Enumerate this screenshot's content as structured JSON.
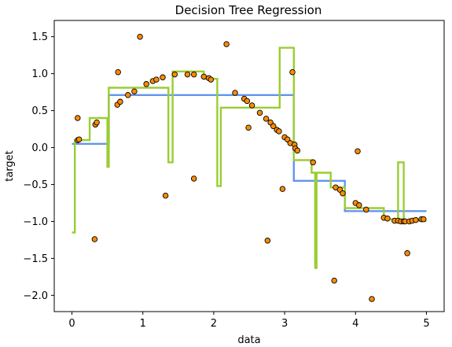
{
  "chart_data": {
    "type": "scatter",
    "title": "Decision Tree Regression",
    "xlabel": "data",
    "ylabel": "target",
    "xlim": [
      -0.25,
      5.25
    ],
    "ylim": [
      -2.22,
      1.72
    ],
    "x_ticks": [
      0,
      1,
      2,
      3,
      4,
      5
    ],
    "y_ticks": [
      -2.0,
      -1.5,
      -1.0,
      -0.5,
      0.0,
      0.5,
      1.0,
      1.5
    ],
    "x_tick_labels": [
      "0",
      "1",
      "2",
      "3",
      "4",
      "5"
    ],
    "y_tick_labels": [
      "−2.0",
      "−1.5",
      "−1.0",
      "−0.5",
      "0.0",
      "0.5",
      "1.0",
      "1.5"
    ],
    "grid": false,
    "legend": "none",
    "colors": {
      "points_fill": "#ff8c00",
      "points_edge": "#000000",
      "series_1": "#6495ed",
      "series_2": "#9acd32"
    },
    "series": [
      {
        "type": "scatter",
        "points": [
          [
            0.08,
            0.4
          ],
          [
            0.08,
            0.1
          ],
          [
            0.1,
            0.11
          ],
          [
            0.32,
            -1.24
          ],
          [
            0.33,
            0.31
          ],
          [
            0.35,
            0.34
          ],
          [
            0.64,
            0.58
          ],
          [
            0.65,
            1.02
          ],
          [
            0.68,
            0.62
          ],
          [
            0.79,
            0.71
          ],
          [
            0.88,
            0.76
          ],
          [
            0.96,
            1.5
          ],
          [
            1.05,
            0.86
          ],
          [
            1.14,
            0.9
          ],
          [
            1.19,
            0.92
          ],
          [
            1.28,
            0.95
          ],
          [
            1.32,
            -0.65
          ],
          [
            1.45,
            0.99
          ],
          [
            1.63,
            0.99
          ],
          [
            1.72,
            0.99
          ],
          [
            1.72,
            -0.42
          ],
          [
            1.86,
            0.96
          ],
          [
            1.93,
            0.94
          ],
          [
            1.96,
            0.92
          ],
          [
            2.18,
            1.4
          ],
          [
            2.3,
            0.74
          ],
          [
            2.43,
            0.66
          ],
          [
            2.47,
            0.63
          ],
          [
            2.49,
            0.27
          ],
          [
            2.54,
            0.57
          ],
          [
            2.65,
            0.47
          ],
          [
            2.74,
            0.39
          ],
          [
            2.76,
            -1.26
          ],
          [
            2.8,
            0.34
          ],
          [
            2.84,
            0.29
          ],
          [
            2.89,
            0.24
          ],
          [
            2.92,
            0.22
          ],
          [
            2.97,
            -0.56
          ],
          [
            3.0,
            0.14
          ],
          [
            3.04,
            0.11
          ],
          [
            3.08,
            0.06
          ],
          [
            3.11,
            1.02
          ],
          [
            3.14,
            0.04
          ],
          [
            3.15,
            -0.01
          ],
          [
            3.18,
            -0.04
          ],
          [
            3.4,
            -0.2
          ],
          [
            3.7,
            -1.8
          ],
          [
            3.72,
            -0.54
          ],
          [
            3.78,
            -0.57
          ],
          [
            3.82,
            -0.62
          ],
          [
            4.0,
            -0.75
          ],
          [
            4.03,
            -0.05
          ],
          [
            4.05,
            -0.78
          ],
          [
            4.15,
            -0.84
          ],
          [
            4.23,
            -2.05
          ],
          [
            4.4,
            -0.95
          ],
          [
            4.45,
            -0.96
          ],
          [
            4.55,
            -0.99
          ],
          [
            4.6,
            -0.99
          ],
          [
            4.64,
            -1.0
          ],
          [
            4.68,
            -1.0
          ],
          [
            4.7,
            -1.0
          ],
          [
            4.73,
            -1.43
          ],
          [
            4.76,
            -1.0
          ],
          [
            4.8,
            -0.99
          ],
          [
            4.85,
            -0.98
          ],
          [
            4.93,
            -0.97
          ],
          [
            4.96,
            -0.97
          ]
        ]
      },
      {
        "type": "line",
        "points": [
          [
            0.0,
            0.05
          ],
          [
            0.52,
            0.05
          ],
          [
            0.52,
            0.71
          ],
          [
            3.13,
            0.71
          ],
          [
            3.13,
            -0.45
          ],
          [
            3.85,
            -0.45
          ],
          [
            3.85,
            -0.86
          ],
          [
            5.0,
            -0.86
          ]
        ]
      },
      {
        "type": "line",
        "points": [
          [
            0.0,
            -1.15
          ],
          [
            0.04,
            -1.15
          ],
          [
            0.04,
            0.1
          ],
          [
            0.25,
            0.1
          ],
          [
            0.25,
            0.4
          ],
          [
            0.5,
            0.4
          ],
          [
            0.5,
            -0.26
          ],
          [
            0.52,
            -0.26
          ],
          [
            0.52,
            0.81
          ],
          [
            1.36,
            0.81
          ],
          [
            1.36,
            -0.2
          ],
          [
            1.42,
            -0.2
          ],
          [
            1.42,
            1.03
          ],
          [
            1.86,
            1.03
          ],
          [
            1.86,
            0.93
          ],
          [
            2.05,
            0.93
          ],
          [
            2.05,
            -0.52
          ],
          [
            2.1,
            -0.52
          ],
          [
            2.1,
            0.54
          ],
          [
            2.93,
            0.54
          ],
          [
            2.93,
            1.35
          ],
          [
            3.13,
            1.35
          ],
          [
            3.13,
            -0.17
          ],
          [
            3.38,
            -0.17
          ],
          [
            3.38,
            -0.34
          ],
          [
            3.43,
            -0.34
          ],
          [
            3.43,
            -1.63
          ],
          [
            3.45,
            -1.63
          ],
          [
            3.45,
            -0.34
          ],
          [
            3.65,
            -0.34
          ],
          [
            3.65,
            -0.54
          ],
          [
            3.85,
            -0.54
          ],
          [
            3.85,
            -0.82
          ],
          [
            4.4,
            -0.82
          ],
          [
            4.4,
            -0.97
          ],
          [
            4.6,
            -0.97
          ],
          [
            4.6,
            -0.2
          ],
          [
            4.68,
            -0.2
          ],
          [
            4.68,
            -0.99
          ],
          [
            5.0,
            -0.99
          ]
        ]
      }
    ]
  }
}
